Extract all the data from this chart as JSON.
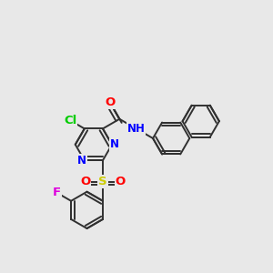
{
  "background_color": "#e8e8e8",
  "bond_color": "#303030",
  "bond_width": 1.4,
  "atom_colors": {
    "Cl": "#00cc00",
    "O": "#ff0000",
    "N": "#0000ff",
    "S": "#cccc00",
    "F": "#dd00dd",
    "C": "#303030",
    "H": "#606060"
  },
  "font_size": 8.5,
  "fig_size": [
    3.0,
    3.0
  ],
  "dpi": 100
}
